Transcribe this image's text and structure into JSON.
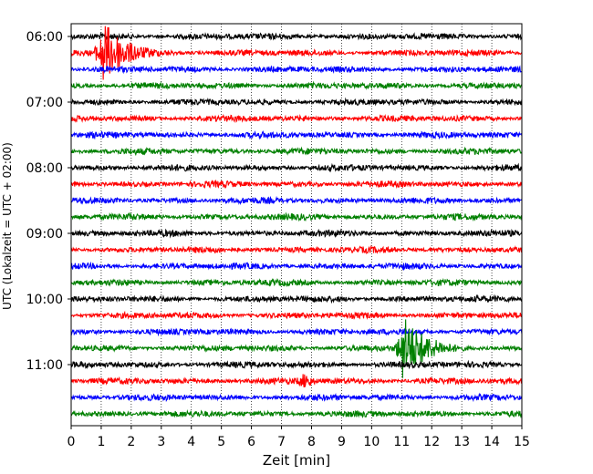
{
  "chart_data": {
    "type": "line",
    "xlabel": "Zeit  [min]",
    "ylabel": "UTC (Lokalzeit = UTC + 02:00)",
    "xlim": [
      0,
      15
    ],
    "x_ticks": [
      0,
      1,
      2,
      3,
      4,
      5,
      6,
      7,
      8,
      9,
      10,
      11,
      12,
      13,
      14,
      15
    ],
    "x_grid": "dotted",
    "y_ticks": [
      "06:00",
      "07:00",
      "08:00",
      "09:00",
      "10:00",
      "11:00"
    ],
    "trace_start": "06:00",
    "trace_minutes": 15,
    "trace_count": 24,
    "color_cycle": [
      "#000000",
      "#ff0000",
      "#0000ff",
      "#008000"
    ],
    "events": [
      {
        "start": "06:15",
        "minute": 1.0,
        "strength": "strong"
      },
      {
        "start": "10:45",
        "minute": 11.0,
        "strength": "strong"
      },
      {
        "start": "11:15",
        "minute": 7.8,
        "strength": "weak"
      }
    ]
  }
}
